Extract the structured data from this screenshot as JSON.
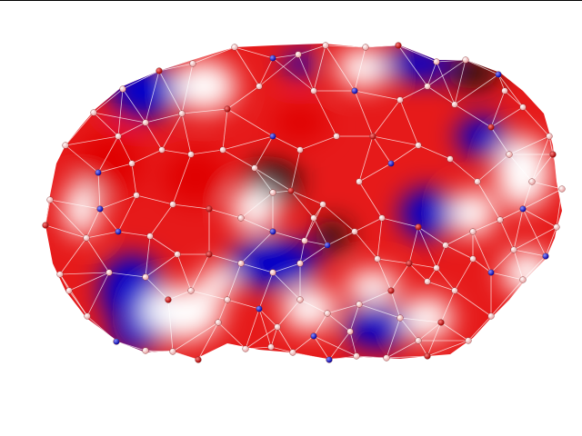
{
  "scene": {
    "background": "#ffffff",
    "top_border_color": "#000000",
    "palette": {
      "positive": "#e00000",
      "neutral": "#ffffff",
      "negative": "#0000cc",
      "dark_shade": "#200a0a",
      "mesh_line": "#ffffff",
      "node_light": "#f4c8c8",
      "node_red": "#d01010",
      "node_blue": "#2020c0"
    },
    "icons": {
      "mesh_node": "sphere",
      "mesh_edge": "line"
    }
  }
}
